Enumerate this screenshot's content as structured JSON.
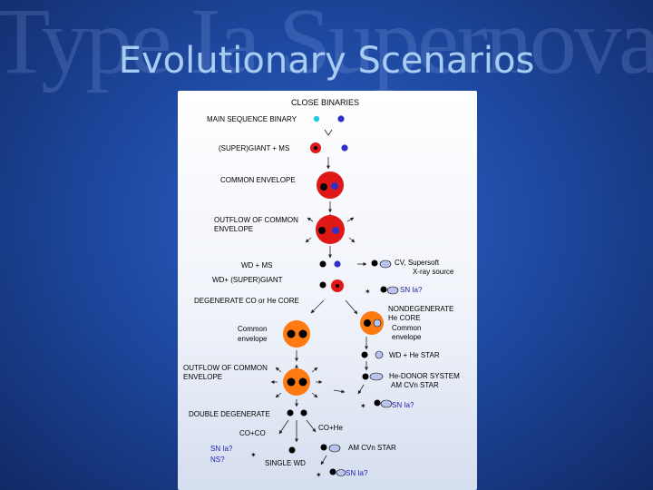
{
  "background_title": "Type Ia Supernovae",
  "slide_title": "Evolutionary Scenarios",
  "diagram": {
    "header": "CLOSE BINARIES",
    "main_sequence_binary": "MAIN SEQUENCE BINARY",
    "super_giant_ms": "(SUPER)GIANT + MS",
    "common_envelope": "COMMON ENVELOPE",
    "outflow_1_line1": "OUTFLOW OF COMMON",
    "outflow_1_line2": "ENVELOPE",
    "wd_ms": "WD + MS",
    "wd_super_giant": "WD+ (SUPER)GIANT",
    "cv_line1": "CV, Supersoft",
    "cv_line2": "X-ray source",
    "sn_ia_1": "SN Ia?",
    "degenerate_core": "DEGENERATE  CO or He CORE",
    "nondegenerate_line1": "NONDEGENERATE",
    "nondegenerate_line2": "He CORE",
    "common_env_right_line1": "Common",
    "common_env_right_line2": "envelope",
    "common_env_left_line1": "Common",
    "common_env_left_line2": "envelope",
    "wd_he_star": "WD + He STAR",
    "outflow_2_line1": "OUTFLOW OF COMMON",
    "outflow_2_line2": "ENVELOPE",
    "he_donor_line1": "He-DONOR SYSTEM",
    "he_donor_line2": "AM CVn STAR",
    "sn_ia_2": "SN Ia?",
    "double_degenerate": "DOUBLE DEGENERATE",
    "co_he": "CO+He",
    "co_co": "CO+CO",
    "am_cvn_star": "AM CVn STAR",
    "sn_ia_left": "SN Ia?",
    "ns": "NS?",
    "single_wd": "SINGLE WD",
    "sn_ia_3": "SN Ia?"
  },
  "colors": {
    "giant_red": "#e01818",
    "degenerate_orange": "#ff7a10",
    "white_dwarf": "#000000",
    "ms_star_blue": "#3030c8",
    "ms_star_cyan": "#20c8e0",
    "explosion_red": "#e01830",
    "accretion_disk": "#b8c4ee"
  }
}
